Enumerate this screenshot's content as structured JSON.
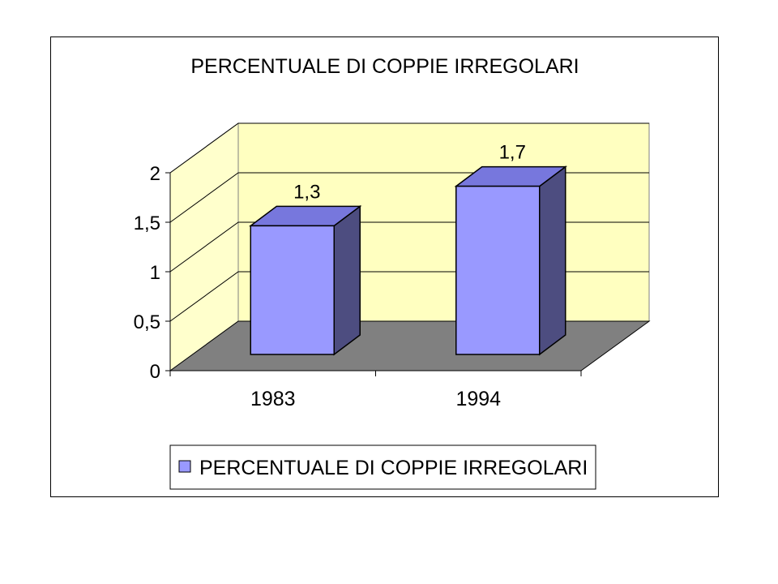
{
  "chart_data": {
    "type": "bar",
    "title": "PERCENTUALE DI COPPIE IRREGOLARI",
    "categories": [
      "1983",
      "1994"
    ],
    "series": [
      {
        "name": "PERCENTUALE DI COPPIE IRREGOLARI",
        "values": [
          1.3,
          1.7
        ],
        "labels": [
          "1,3",
          "1,7"
        ]
      }
    ],
    "ylim": [
      0,
      2
    ],
    "yticks": [
      0,
      0.5,
      1,
      1.5,
      2
    ],
    "ytick_labels": [
      "0",
      "0,5",
      "1",
      "1,5",
      "2"
    ],
    "xlabel": "",
    "ylabel": "",
    "grid": true,
    "legend": "bottom",
    "three_d": true,
    "colors": {
      "bar_front": "#9999ff",
      "bar_top": "#7777dd",
      "bar_side": "#4d4d80",
      "back_wall": "#ffffc0",
      "side_wall": "#ffffcc",
      "floor": "#808080",
      "gridline": "#000000"
    }
  }
}
